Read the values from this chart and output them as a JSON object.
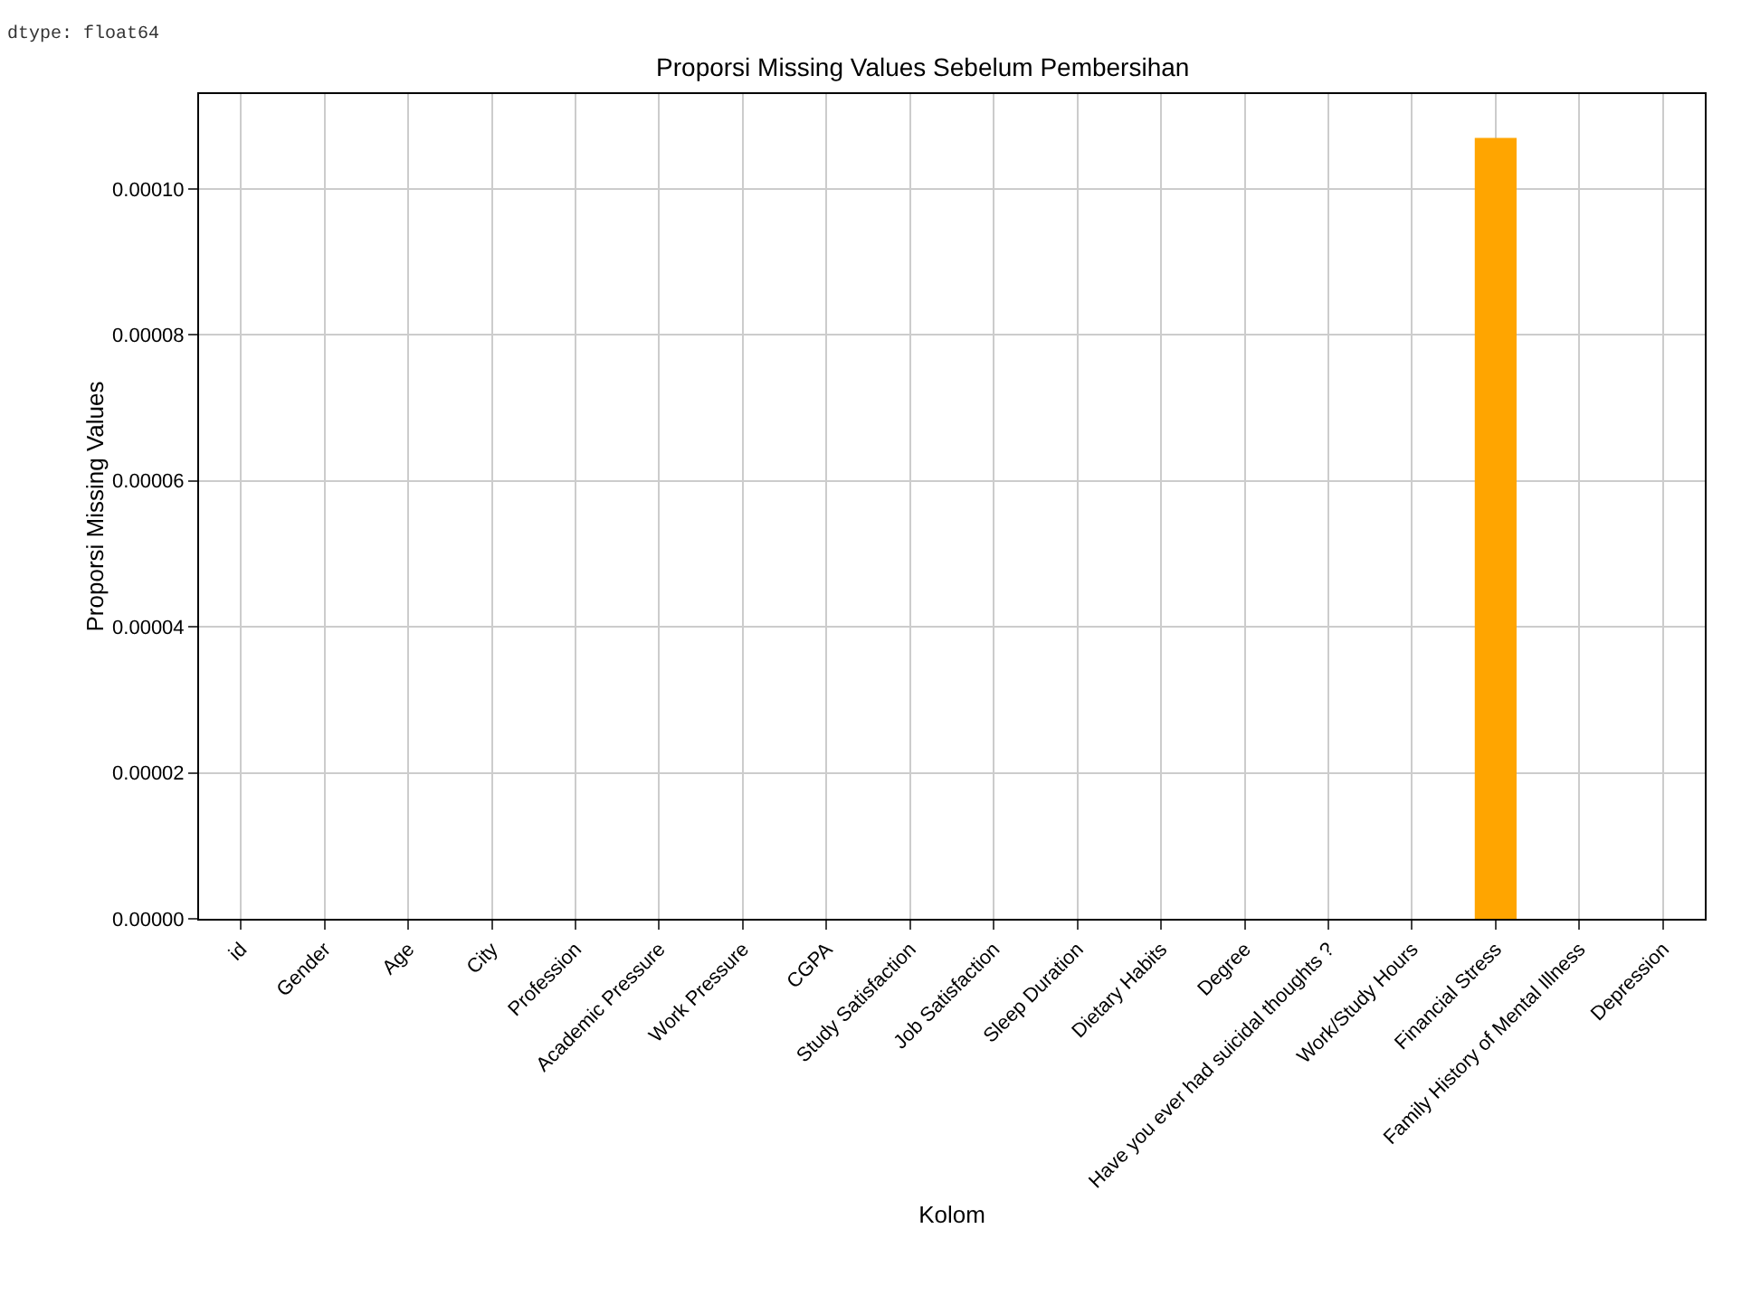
{
  "chart_data": {
    "type": "bar",
    "title": "Proporsi Missing Values Sebelum Pembersihan",
    "xlabel": "Kolom",
    "ylabel": "Proporsi Missing Values",
    "categories": [
      "id",
      "Gender",
      "Age",
      "City",
      "Profession",
      "Academic Pressure",
      "Work Pressure",
      "CGPA",
      "Study Satisfaction",
      "Job Satisfaction",
      "Sleep Duration",
      "Dietary Habits",
      "Degree",
      "Have you ever had suicidal thoughts ?",
      "Work/Study Hours",
      "Financial Stress",
      "Family History of Mental Illness",
      "Depression"
    ],
    "values": [
      0,
      0,
      0,
      0,
      0,
      0,
      0,
      0,
      0,
      0,
      0,
      0,
      0,
      0,
      0,
      0.000107,
      0,
      0
    ],
    "color": "#ffa500",
    "ylim": [
      0,
      0.000113
    ],
    "yticks": [
      {
        "value": 0,
        "label": "0.00000"
      },
      {
        "value": 2e-05,
        "label": "0.00002"
      },
      {
        "value": 4e-05,
        "label": "0.00004"
      },
      {
        "value": 6e-05,
        "label": "0.00006"
      },
      {
        "value": 8e-05,
        "label": "0.00008"
      },
      {
        "value": 0.0001,
        "label": "0.00010"
      }
    ],
    "grid": true,
    "annotations": [
      "dtype: float64"
    ]
  }
}
